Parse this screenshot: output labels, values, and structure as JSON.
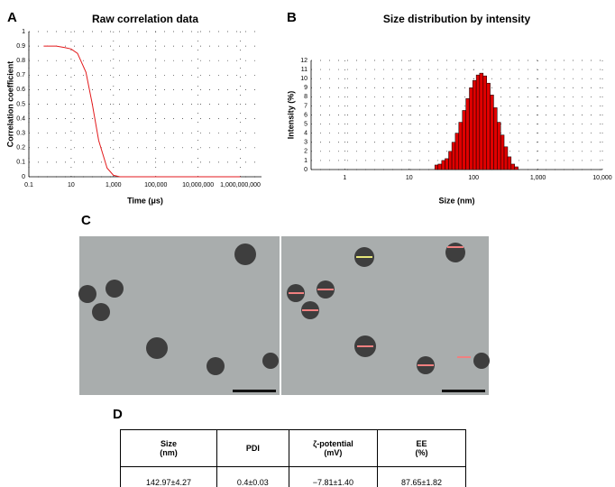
{
  "panel_labels": [
    "A",
    "B",
    "C",
    "D"
  ],
  "chart_data": [
    {
      "type": "line",
      "title": "Raw correlation data",
      "xlabel": "Time (μs)",
      "ylabel": "Correlation coefficient",
      "xscale": "log",
      "grid": true,
      "color": "#e31a1c",
      "x": [
        0.5,
        1,
        2,
        5,
        10,
        20,
        50,
        100,
        200,
        500,
        1000,
        2000,
        5000,
        10000,
        100000,
        1000000,
        10000000,
        100000000,
        1000000000
      ],
      "values": [
        0.9,
        0.9,
        0.9,
        0.89,
        0.88,
        0.85,
        0.72,
        0.5,
        0.25,
        0.06,
        0.01,
        0,
        0,
        0,
        0,
        0,
        0,
        0,
        0
      ],
      "xlim": [
        0.1,
        10000000000
      ],
      "ylim": [
        0,
        1
      ],
      "xticks": [
        0.1,
        10,
        {
          "value": 1000,
          "label": "1,000"
        },
        {
          "value": 100000,
          "label": "100,000"
        },
        {
          "value": 10000000,
          "label": "10,000,000"
        },
        {
          "value": 1000000000,
          "label": "1,000,000,000"
        }
      ],
      "yticks": [
        0,
        0.1,
        0.2,
        0.3,
        0.4,
        0.5,
        0.6,
        0.7,
        0.8,
        0.9,
        1
      ]
    },
    {
      "type": "histogram",
      "title": "Size distribution by intensity",
      "xlabel": "Size (nm)",
      "ylabel": "Intensity (%)",
      "xscale": "log",
      "grid": true,
      "color": "#e00000",
      "bins": [
        25,
        28,
        32,
        36,
        41,
        46,
        52,
        59,
        67,
        76,
        86,
        97,
        110,
        124,
        141,
        160,
        181,
        205,
        232,
        263,
        298,
        338,
        383,
        434,
        492
      ],
      "values": [
        0.5,
        0.6,
        1.0,
        1.2,
        2.0,
        3.0,
        4.0,
        5.2,
        6.5,
        7.8,
        9.0,
        9.8,
        10.4,
        10.6,
        10.3,
        9.5,
        8.2,
        6.8,
        5.2,
        3.8,
        2.5,
        1.4,
        0.6,
        0.3
      ],
      "xlim": [
        0.3,
        10000
      ],
      "ylim": [
        0,
        12
      ],
      "xticks": [
        1,
        10,
        100,
        {
          "value": 1000,
          "label": "1,000"
        },
        {
          "value": 10000,
          "label": "10,000"
        }
      ],
      "yticks": [
        0,
        1,
        2,
        3,
        4,
        5,
        6,
        7,
        8,
        9,
        10,
        11,
        12
      ]
    }
  ],
  "table": {
    "header": [
      "Size\n(nm)",
      "PDI",
      "ζ-potential\n(mV)",
      "EE\n(%)"
    ],
    "rows": [
      [
        "142.97±4.27",
        "0.4±0.03",
        "−7.81±1.40",
        "87.65±1.82"
      ]
    ]
  }
}
